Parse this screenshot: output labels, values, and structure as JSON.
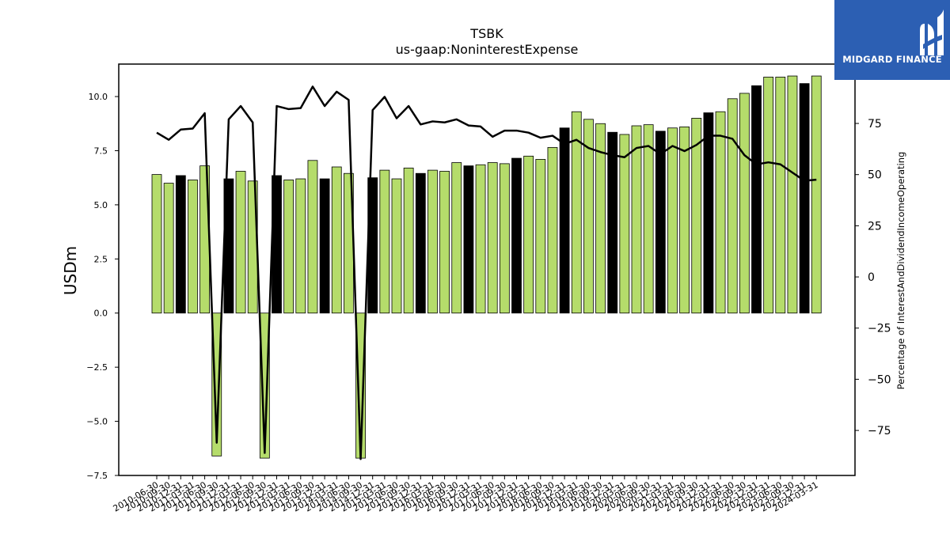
{
  "brand": {
    "name": "MIDGARD FINANCE",
    "background": "#2c5fb3"
  },
  "colors": {
    "bar_default": "#b5dc6b",
    "bar_highlight": "#000000",
    "line": "#000000"
  },
  "chart_data": {
    "type": "bar",
    "title": "TSBK",
    "subtitle": "us-gaap:NoninterestExpense",
    "ylabel": "USDm",
    "y2label": "Percentage of InterestAndDividendIncomeOperating",
    "ylim": [
      -7.5,
      11.5
    ],
    "y2lim": [
      -97,
      104
    ],
    "yticks": [
      -7.5,
      -5.0,
      -2.5,
      0.0,
      2.5,
      5.0,
      7.5,
      10.0
    ],
    "y2ticks": [
      -75,
      -50,
      -25,
      0,
      25,
      50,
      75
    ],
    "categories": [
      "2010-06-30",
      "2010-09-30",
      "2010-12-31",
      "2011-03-31",
      "2011-06-30",
      "2011-09-30",
      "2011-12-31",
      "2012-03-31",
      "2012-06-30",
      "2012-09-30",
      "2012-12-31",
      "2013-03-31",
      "2013-06-30",
      "2013-09-30",
      "2013-12-31",
      "2014-03-31",
      "2014-06-30",
      "2014-09-30",
      "2014-12-31",
      "2015-03-31",
      "2015-06-30",
      "2015-09-30",
      "2015-12-31",
      "2016-03-31",
      "2016-06-30",
      "2016-09-30",
      "2016-12-31",
      "2017-03-31",
      "2017-06-30",
      "2017-09-30",
      "2017-12-31",
      "2018-03-31",
      "2018-06-30",
      "2018-09-30",
      "2018-12-31",
      "2019-03-31",
      "2019-06-30",
      "2019-09-30",
      "2019-12-31",
      "2020-03-31",
      "2020-06-30",
      "2020-09-30",
      "2020-12-31",
      "2021-03-31",
      "2021-06-30",
      "2021-09-30",
      "2021-12-31",
      "2022-03-31",
      "2022-06-30",
      "2022-09-30",
      "2022-12-31",
      "2023-03-31",
      "2023-06-30",
      "2023-09-30",
      "2023-12-31",
      "2024-03-31"
    ],
    "series": [
      {
        "values": [
          6.4,
          6.0,
          6.35,
          6.15,
          6.8,
          -6.6,
          6.2,
          6.55,
          6.1,
          -6.7,
          6.35,
          6.15,
          6.2,
          7.05,
          6.2,
          6.75,
          6.45,
          -6.7,
          6.25,
          6.6,
          6.2,
          6.7,
          6.45,
          6.6,
          6.55,
          6.95,
          6.8,
          6.85,
          6.95,
          6.9,
          7.15,
          7.25,
          7.1,
          7.65,
          8.55,
          9.3,
          8.95,
          8.75,
          8.35,
          8.25,
          8.65,
          8.7,
          8.4,
          8.55,
          8.6,
          9.0,
          9.25,
          9.3,
          9.9,
          10.15,
          10.5,
          10.9,
          10.9,
          10.95,
          10.6,
          10.95
        ],
        "highlight": [
          false,
          false,
          true,
          false,
          false,
          false,
          true,
          false,
          false,
          false,
          true,
          false,
          false,
          false,
          true,
          false,
          false,
          false,
          true,
          false,
          false,
          false,
          true,
          false,
          false,
          false,
          true,
          false,
          false,
          false,
          true,
          false,
          false,
          false,
          true,
          false,
          false,
          false,
          true,
          false,
          false,
          false,
          true,
          false,
          false,
          false,
          true,
          false,
          false,
          false,
          true,
          false,
          false,
          false,
          true,
          false
        ]
      },
      {
        "values": [
          70.5,
          67,
          72,
          72.5,
          80,
          -81,
          77,
          83.5,
          75.5,
          -86,
          83.5,
          82,
          82.5,
          93,
          83.5,
          90.5,
          86.5,
          -89,
          81.5,
          88,
          77.5,
          83.5,
          74.5,
          76,
          75.5,
          77,
          74,
          73.5,
          68.5,
          71.5,
          71.5,
          70.5,
          68,
          69,
          65,
          67,
          63,
          61,
          59.5,
          58.5,
          63,
          64,
          60,
          64,
          61.5,
          64.5,
          69,
          69,
          67.5,
          59.5,
          55,
          56,
          55,
          51,
          47,
          47.5
        ]
      }
    ]
  }
}
